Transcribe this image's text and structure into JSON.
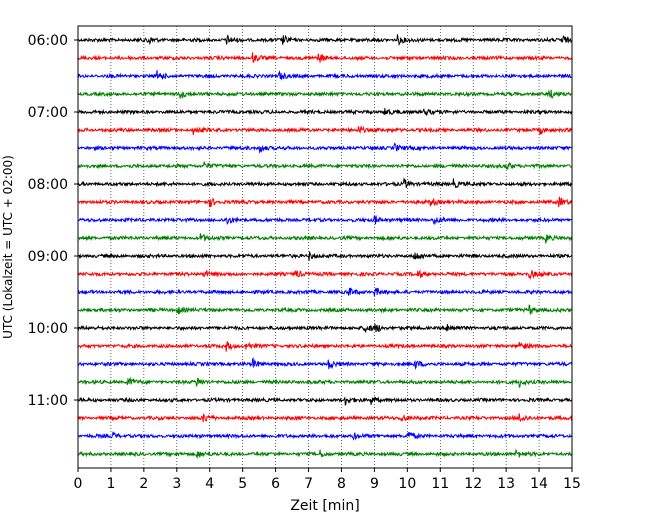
{
  "chart_data": {
    "type": "line",
    "title": "",
    "xlabel": "Zeit  [min]",
    "ylabel": "UTC (Lokalzeit = UTC + 02:00)",
    "xlim": [
      0,
      15
    ],
    "x_ticks": [
      "0",
      "1",
      "2",
      "3",
      "4",
      "5",
      "6",
      "7",
      "8",
      "9",
      "10",
      "11",
      "12",
      "13",
      "14",
      "15"
    ],
    "y_tick_labels": [
      "06:00",
      "07:00",
      "08:00",
      "09:00",
      "10:00",
      "11:00"
    ],
    "grid": "vertical dotted",
    "trace_interval_min": 15,
    "colors": [
      "#000000",
      "#ff0000",
      "#0000ff",
      "#008000"
    ],
    "traces": [
      {
        "start": "06:00",
        "events": [
          2.1,
          4.5,
          6.2,
          9.7,
          14.7
        ]
      },
      {
        "start": "06:15",
        "events": [
          7.3,
          5.3
        ]
      },
      {
        "start": "06:30",
        "events": [
          2.4,
          6.1
        ]
      },
      {
        "start": "06:45",
        "events": [
          3.1,
          14.3
        ]
      },
      {
        "start": "07:00",
        "events": [
          9.3,
          10.5
        ]
      },
      {
        "start": "07:15",
        "events": [
          3.5,
          14.0,
          8.5
        ]
      },
      {
        "start": "07:30",
        "events": [
          9.6,
          5.5
        ]
      },
      {
        "start": "07:45",
        "events": [
          3.8,
          13.0
        ]
      },
      {
        "start": "08:00",
        "events": [
          9.9,
          11.4
        ]
      },
      {
        "start": "08:15",
        "events": [
          4.0,
          14.6,
          10.7
        ]
      },
      {
        "start": "08:30",
        "events": [
          4.5,
          10.8,
          9.0
        ]
      },
      {
        "start": "08:45",
        "events": [
          3.7,
          14.2
        ]
      },
      {
        "start": "09:00",
        "events": [
          10.2,
          7.0
        ]
      },
      {
        "start": "09:15",
        "events": [
          3.8,
          6.6,
          13.7,
          10.3
        ]
      },
      {
        "start": "09:30",
        "events": [
          8.2,
          9.0
        ]
      },
      {
        "start": "09:45",
        "events": [
          3.0,
          13.7
        ]
      },
      {
        "start": "10:00",
        "events": [
          8.7,
          9.0,
          11.2
        ]
      },
      {
        "start": "10:15",
        "events": [
          5.1,
          13.4,
          4.5
        ]
      },
      {
        "start": "10:30",
        "events": [
          5.3,
          7.6,
          10.2
        ]
      },
      {
        "start": "10:45",
        "events": [
          1.5,
          3.6,
          13.4
        ]
      },
      {
        "start": "11:00",
        "events": [
          8.1,
          8.9
        ]
      },
      {
        "start": "11:15",
        "events": [
          3.8,
          9.8,
          13.4
        ]
      },
      {
        "start": "11:30",
        "events": [
          1.0,
          8.3,
          10.0
        ]
      },
      {
        "start": "11:45",
        "events": [
          3.6,
          7.3,
          13.3
        ]
      }
    ]
  }
}
